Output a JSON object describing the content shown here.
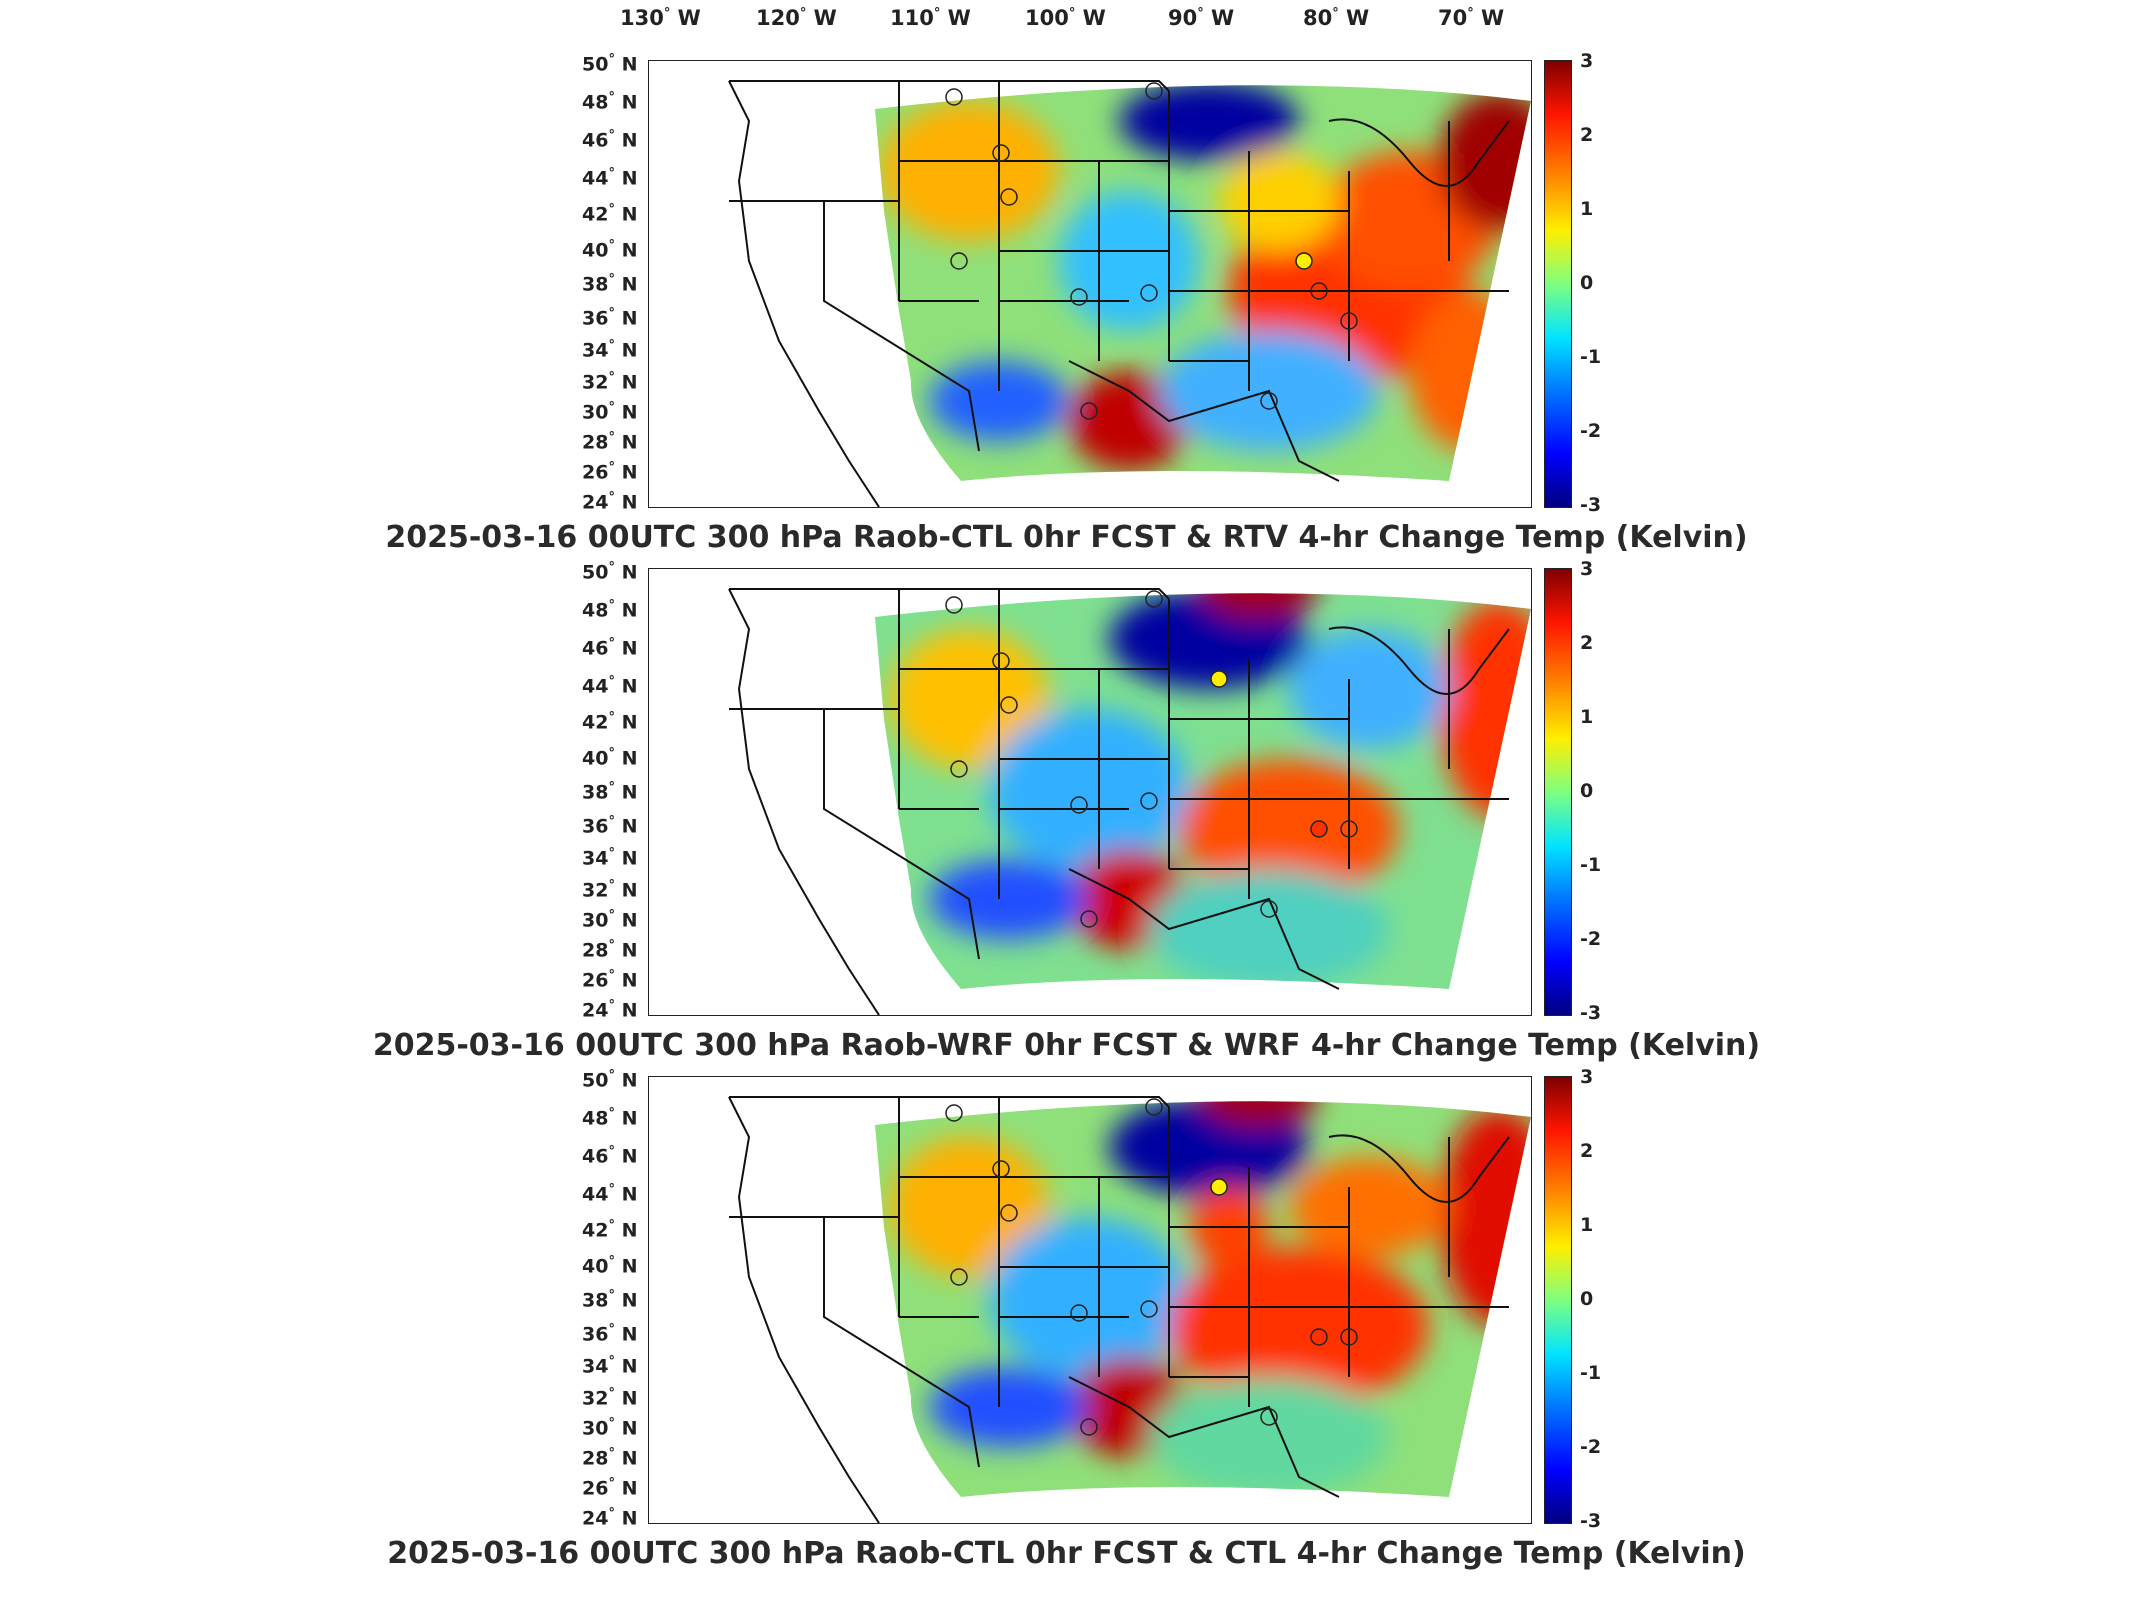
{
  "top_axis": {
    "lon_labels": [
      "130",
      "120",
      "110",
      "100",
      "90",
      "80",
      "70"
    ],
    "lon_suffix": "W",
    "degree": "°"
  },
  "lat_labels": [
    "50",
    "48",
    "46",
    "44",
    "42",
    "40",
    "38",
    "36",
    "34",
    "32",
    "30",
    "28",
    "26",
    "24"
  ],
  "lat_suffix": "N",
  "colorbar": {
    "ticks": [
      "3",
      "2",
      "1",
      "0",
      "-1",
      "-2",
      "-3"
    ],
    "colormap": "jet",
    "range": [
      -3,
      3
    ]
  },
  "panels": [
    {
      "title": "2025-03-16 00UTC 300 hPa Raob-CTL 0hr FCST & RTV 4-hr Change Temp (Kelvin)"
    },
    {
      "title": "2025-03-16 00UTC 300 hPa Raob-WRF 0hr FCST & WRF 4-hr Change Temp (Kelvin)"
    },
    {
      "title": "2025-03-16 00UTC 300 hPa Raob-CTL 0hr FCST & CTL 4-hr Change Temp (Kelvin)"
    }
  ],
  "colors": {
    "dark_red": "#7f0000",
    "red": "#ff2000",
    "orange": "#ff8a00",
    "yellow": "#f4e400",
    "green": "#7fe08a",
    "cyan": "#21d8e8",
    "blue": "#1f6fff",
    "dark_blue": "#00007f",
    "outline": "#111111"
  }
}
